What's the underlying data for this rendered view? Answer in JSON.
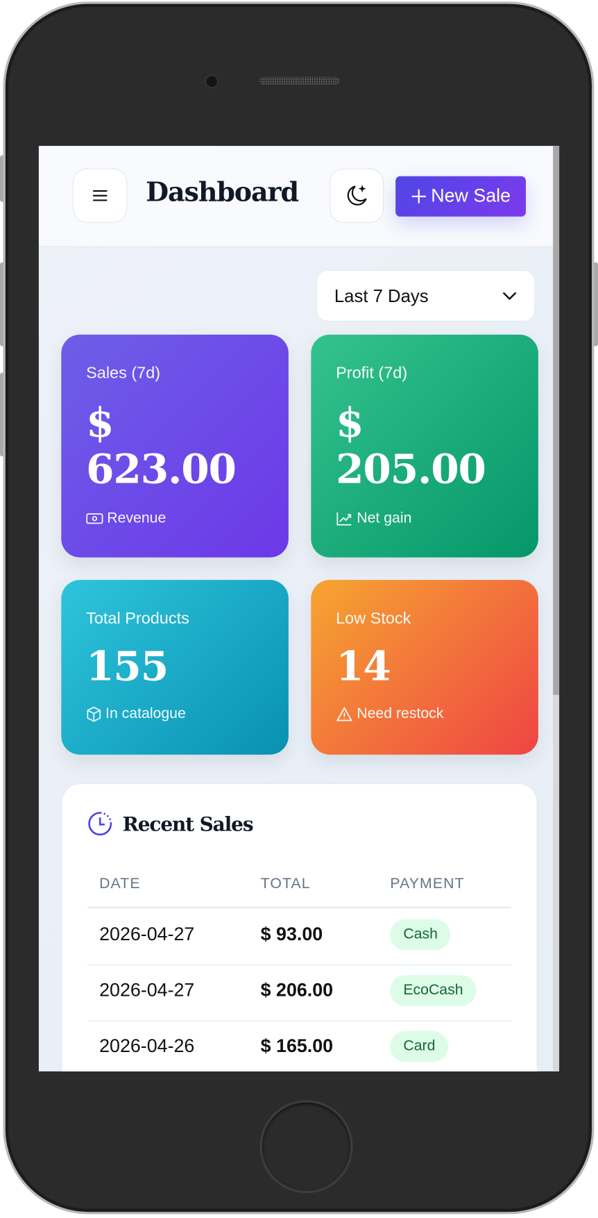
{
  "header": {
    "title": "Dashboard",
    "new_sale_label": "New Sale",
    "menu_icon": "hamburger-icon",
    "theme_icon": "moon-stars-icon",
    "accent": "#4f46e5"
  },
  "filter": {
    "selected": "Last 7 Days"
  },
  "stats": [
    {
      "label": "Sales (7d)",
      "currency": "$",
      "value": "623.00",
      "footer": "Revenue",
      "icon": "banknote-icon",
      "colors": [
        "#6d5ee8",
        "#6d38e8"
      ]
    },
    {
      "label": "Profit (7d)",
      "currency": "$",
      "value": "205.00",
      "footer": "Net gain",
      "icon": "trending-up-icon",
      "colors": [
        "#34c38f",
        "#059669"
      ]
    },
    {
      "label": "Total Products",
      "value": "155",
      "footer": "In catalogue",
      "icon": "box-icon",
      "colors": [
        "#2ec4dc",
        "#0891b2"
      ]
    },
    {
      "label": "Low Stock",
      "value": "14",
      "footer": "Need restock",
      "icon": "warning-icon",
      "colors": [
        "#f6a531",
        "#ef4444"
      ]
    }
  ],
  "recent_sales": {
    "title": "Recent Sales",
    "columns": [
      "DATE",
      "TOTAL",
      "PAYMENT"
    ],
    "rows": [
      {
        "date": "2026-04-27",
        "total": "$ 93.00",
        "payment": "Cash"
      },
      {
        "date": "2026-04-27",
        "total": "$ 206.00",
        "payment": "EcoCash"
      },
      {
        "date": "2026-04-26",
        "total": "$ 165.00",
        "payment": "Card"
      }
    ]
  }
}
